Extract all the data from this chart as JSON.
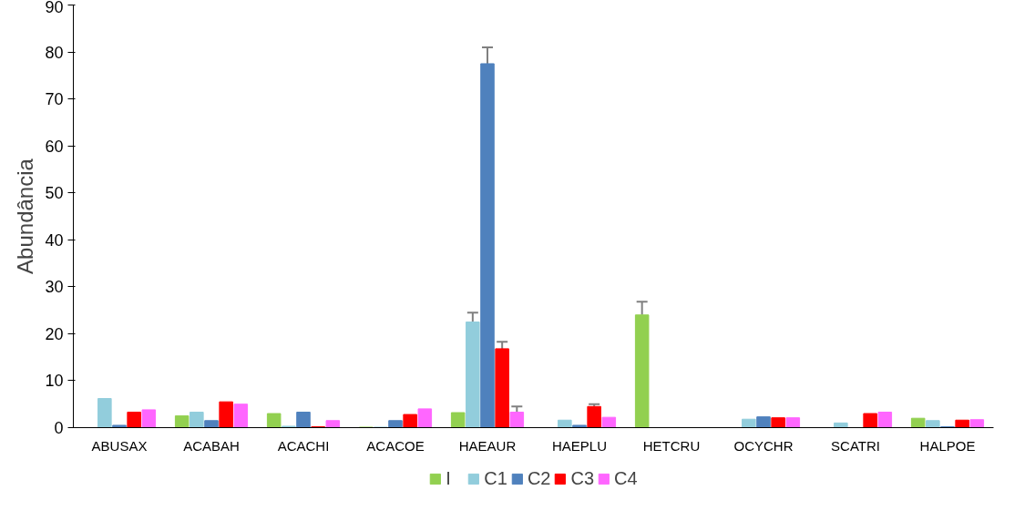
{
  "chart_data": {
    "type": "bar",
    "ylabel": "Abundância",
    "categories": [
      "ABUSAX",
      "ACABAH",
      "ACACHI",
      "ACACOE",
      "HAEAUR",
      "HAEPLU",
      "HETCRU",
      "OCYCHR",
      "SCATRI",
      "HALPOE"
    ],
    "series": [
      {
        "name": "I",
        "color": "#92d050",
        "values": [
          0,
          2.5,
          3.0,
          0.1,
          3.2,
          0,
          24,
          0,
          0,
          2.0
        ],
        "errors": [
          null,
          null,
          null,
          null,
          null,
          null,
          2.8,
          null,
          null,
          null
        ]
      },
      {
        "name": "C1",
        "color": "#92cddc",
        "values": [
          6.2,
          3.3,
          0.3,
          0.1,
          22.5,
          1.6,
          0,
          1.8,
          1.0,
          1.5
        ],
        "errors": [
          null,
          null,
          null,
          null,
          2,
          null,
          null,
          null,
          null,
          null
        ]
      },
      {
        "name": "C2",
        "color": "#4f81bd",
        "values": [
          0.5,
          1.5,
          3.3,
          1.5,
          77.5,
          0.5,
          0,
          2.3,
          0,
          0.2
        ],
        "errors": [
          null,
          null,
          null,
          null,
          3.5,
          null,
          null,
          null,
          null,
          null
        ]
      },
      {
        "name": "C3",
        "color": "#ff0000",
        "values": [
          3.3,
          5.5,
          0.2,
          2.8,
          16.8,
          4.5,
          0,
          2.1,
          3.0,
          1.6
        ],
        "errors": [
          null,
          null,
          null,
          null,
          1.5,
          0.5,
          null,
          null,
          null,
          null
        ]
      },
      {
        "name": "C4",
        "color": "#ff66ff",
        "values": [
          3.8,
          5.0,
          1.5,
          4.0,
          3.3,
          2.2,
          0,
          2.1,
          3.3,
          1.7
        ],
        "errors": [
          null,
          null,
          null,
          null,
          1.2,
          null,
          null,
          null,
          null,
          null
        ]
      }
    ],
    "ylim": [
      0,
      90
    ],
    "yticks": [
      0,
      10,
      20,
      30,
      40,
      50,
      60,
      70,
      80,
      90
    ],
    "grid": false,
    "legend": "bottom"
  }
}
